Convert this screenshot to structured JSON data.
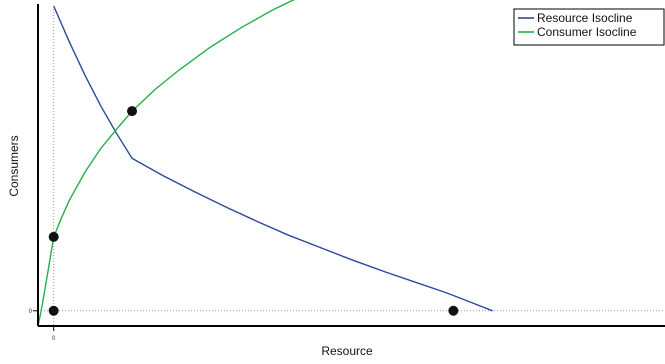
{
  "chart_data": {
    "type": "line",
    "title": "",
    "xlabel": "Resource",
    "ylabel": "Consumers",
    "x_ticks": [
      "0"
    ],
    "y_ticks": [
      "0"
    ],
    "xlim": [
      -0.2,
      7.8
    ],
    "ylim": [
      -0.2,
      4.0
    ],
    "grid": false,
    "legend_position": "top-right",
    "series": [
      {
        "name": "Resource Isocline",
        "color": "#2c4a9b",
        "x": [
          0,
          0.2,
          0.4,
          0.6,
          0.8,
          1.0,
          1.4,
          1.8,
          2.2,
          2.6,
          3.0,
          3.4,
          3.8,
          4.2,
          4.6,
          5.0,
          5.3,
          5.6
        ],
        "y": [
          4.0,
          3.53,
          3.09,
          2.69,
          2.33,
          2.0,
          1.77,
          1.56,
          1.36,
          1.17,
          0.99,
          0.83,
          0.67,
          0.52,
          0.38,
          0.24,
          0.12,
          0.0
        ]
      },
      {
        "name": "Consumer Isocline",
        "color": "#22b14c",
        "x": [
          -0.2,
          -0.15,
          -0.1,
          -0.05,
          0,
          0.1,
          0.2,
          0.4,
          0.6,
          0.8,
          1.0,
          1.3,
          1.6,
          2.0,
          2.4,
          2.8,
          3.1
        ],
        "y": [
          -0.2,
          0.05,
          0.35,
          0.66,
          0.97,
          1.22,
          1.45,
          1.82,
          2.13,
          2.38,
          2.62,
          2.91,
          3.16,
          3.46,
          3.72,
          3.95,
          4.1
        ]
      }
    ],
    "points": [
      {
        "x": 0,
        "y": 0
      },
      {
        "x": 0,
        "y": 0.97
      },
      {
        "x": 1.0,
        "y": 2.62
      },
      {
        "x": 5.1,
        "y": 0
      }
    ],
    "reference_lines": [
      {
        "axis": "x",
        "value": 0
      },
      {
        "axis": "y",
        "value": 0
      }
    ]
  }
}
